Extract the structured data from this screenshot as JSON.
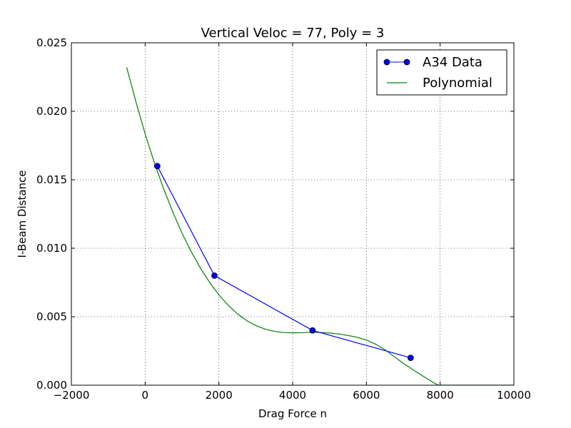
{
  "chart_data": {
    "type": "line",
    "title": "Vertical Veloc = 77, Poly = 3",
    "xlabel": "Drag Force n",
    "ylabel": "I-Beam Distance",
    "xlim": [
      -2000,
      10000
    ],
    "ylim": [
      0,
      0.025
    ],
    "grid": true,
    "legend_position": "top-right",
    "x_ticks": [
      -2000,
      0,
      2000,
      4000,
      6000,
      8000,
      10000
    ],
    "x_tick_labels": [
      "−2000",
      "0",
      "2000",
      "4000",
      "6000",
      "8000",
      "10000"
    ],
    "y_ticks": [
      0,
      0.005,
      0.01,
      0.015,
      0.02,
      0.025
    ],
    "y_tick_labels": [
      "0.000",
      "0.005",
      "0.010",
      "0.015",
      "0.020",
      "0.025"
    ],
    "series": [
      {
        "name": "A34 Data",
        "kind": "line-marker",
        "color": "#0000ff",
        "x": [
          330,
          1880,
          4540,
          7200
        ],
        "y": [
          0.016,
          0.008,
          0.004,
          0.002
        ]
      },
      {
        "name": "Polynomial",
        "kind": "line",
        "color": "#008000",
        "x": [
          -500,
          -250,
          0,
          250,
          500,
          750,
          1000,
          1250,
          1500,
          1750,
          2000,
          2250,
          2500,
          2750,
          3000,
          3250,
          3500,
          3750,
          4000,
          4250,
          4500,
          4750,
          5000,
          5250,
          5500,
          5750,
          6000,
          6250,
          6500,
          6750,
          7000,
          7250,
          7500,
          7750,
          7950,
          8000,
          10000
        ],
        "y": [
          0.0232,
          0.0207,
          0.01835,
          0.01625,
          0.01435,
          0.01265,
          0.0111,
          0.00975,
          0.00855,
          0.0075,
          0.0066,
          0.00584,
          0.00522,
          0.00472,
          0.00436,
          0.0041,
          0.00393,
          0.00385,
          0.00382,
          0.00383,
          0.00385,
          0.00385,
          0.00381,
          0.00374,
          0.00363,
          0.0035,
          0.0033,
          0.003,
          0.0026,
          0.0021,
          0.0016,
          0.00115,
          0.00072,
          0.0003,
          0.0,
          0.0,
          0.0
        ]
      }
    ]
  }
}
